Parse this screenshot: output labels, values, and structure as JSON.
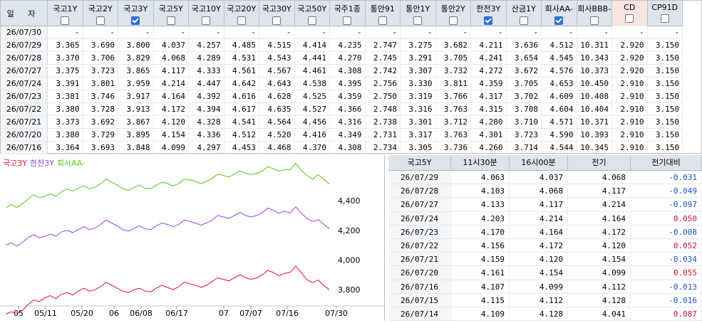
{
  "grid": {
    "date_header": "일 자",
    "columns": [
      {
        "label": "국고1Y",
        "checked": false
      },
      {
        "label": "국고2Y",
        "checked": false
      },
      {
        "label": "국고3Y",
        "checked": true
      },
      {
        "label": "국고5Y",
        "checked": false
      },
      {
        "label": "국고10Y",
        "checked": false
      },
      {
        "label": "국고20Y",
        "checked": false
      },
      {
        "label": "국고30Y",
        "checked": false
      },
      {
        "label": "국고50Y",
        "checked": false
      },
      {
        "label": "국주1종",
        "checked": false
      },
      {
        "label": "통안91",
        "checked": false
      },
      {
        "label": "통안1Y",
        "checked": false
      },
      {
        "label": "통안2Y",
        "checked": false
      },
      {
        "label": "한전3Y",
        "checked": true
      },
      {
        "label": "산금1Y",
        "checked": false
      },
      {
        "label": "회사AA-",
        "checked": true
      },
      {
        "label": "회사BBB-",
        "checked": false
      },
      {
        "label": "CD",
        "checked": false
      },
      {
        "label": "CP91D",
        "checked": false
      }
    ],
    "rows": [
      {
        "date": "26/07/30",
        "values": [
          "-",
          "-",
          "-",
          "-",
          "-",
          "-",
          "-",
          "-",
          "-",
          "-",
          "-",
          "-",
          "-",
          "-",
          "-",
          "-",
          "-",
          "-"
        ]
      },
      {
        "date": "26/07/29",
        "values": [
          "3.365",
          "3.690",
          "3.800",
          "4.037",
          "4.257",
          "4.485",
          "4.515",
          "4.414",
          "4.235",
          "2.747",
          "3.275",
          "3.682",
          "4.211",
          "3.636",
          "4.512",
          "10.311",
          "2.920",
          "3.150"
        ]
      },
      {
        "date": "26/07/28",
        "values": [
          "3.370",
          "3.706",
          "3.829",
          "4.068",
          "4.289",
          "4.531",
          "4.543",
          "4.441",
          "4.270",
          "2.745",
          "3.291",
          "3.705",
          "4.241",
          "3.654",
          "4.545",
          "10.343",
          "2.920",
          "3.150"
        ]
      },
      {
        "date": "26/07/27",
        "values": [
          "3.375",
          "3.723",
          "3.865",
          "4.117",
          "4.333",
          "4.561",
          "4.567",
          "4.461",
          "4.308",
          "2.742",
          "3.307",
          "3.732",
          "4.272",
          "3.672",
          "4.576",
          "10.373",
          "2.920",
          "3.150"
        ]
      },
      {
        "date": "26/07/24",
        "values": [
          "3.391",
          "3.801",
          "3.959",
          "4.214",
          "4.447",
          "4.642",
          "4.643",
          "4.538",
          "4.395",
          "2.756",
          "3.330",
          "3.811",
          "4.359",
          "3.705",
          "4.653",
          "10.450",
          "2.910",
          "3.150"
        ]
      },
      {
        "date": "26/07/23",
        "values": [
          "3.381",
          "3.746",
          "3.917",
          "4.164",
          "4.392",
          "4.616",
          "4.628",
          "4.525",
          "4.359",
          "2.750",
          "3.319",
          "3.766",
          "4.317",
          "3.702",
          "4.609",
          "10.408",
          "2.910",
          "3.150"
        ]
      },
      {
        "date": "26/07/22",
        "values": [
          "3.380",
          "3.728",
          "3.913",
          "4.172",
          "4.394",
          "4.617",
          "4.635",
          "4.527",
          "4.366",
          "2.748",
          "3.316",
          "3.763",
          "4.315",
          "3.708",
          "4.604",
          "10.404",
          "2.910",
          "3.150"
        ]
      },
      {
        "date": "26/07/21",
        "values": [
          "3.373",
          "3.692",
          "3.867",
          "4.120",
          "4.328",
          "4.541",
          "4.564",
          "4.456",
          "4.316",
          "2.738",
          "3.301",
          "3.712",
          "4.280",
          "3.710",
          "4.571",
          "10.371",
          "2.910",
          "3.150"
        ]
      },
      {
        "date": "26/07/20",
        "values": [
          "3.380",
          "3.729",
          "3.895",
          "4.154",
          "4.336",
          "4.512",
          "4.520",
          "4.416",
          "4.349",
          "2.731",
          "3.317",
          "3.763",
          "4.301",
          "3.723",
          "4.590",
          "10.393",
          "2.910",
          "3.150"
        ]
      },
      {
        "date": "26/07/16",
        "values": [
          "3.364",
          "3.693",
          "3.848",
          "4.099",
          "4.297",
          "4.453",
          "4.468",
          "4.370",
          "4.308",
          "2.734",
          "3.305",
          "3.736",
          "4.260",
          "3.714",
          "4.544",
          "10.345",
          "2.910",
          "3.150"
        ]
      }
    ]
  },
  "chart_data": {
    "type": "line",
    "legend": [
      {
        "name": "국고3Y",
        "color": "#e8102a"
      },
      {
        "name": "한전3Y",
        "color": "#9a3fe0"
      },
      {
        "name": "회사AA-",
        "color": "#58c41a"
      }
    ],
    "y_ticks": [
      "4,400",
      "4,200",
      "4,000",
      "3,800"
    ],
    "y_tick_values": [
      4400,
      4200,
      4000,
      3800
    ],
    "ylim": [
      3700,
      4650
    ],
    "x_ticks": [
      "05",
      "05/11",
      "05/20",
      "06",
      "06/08",
      "06/17",
      "07",
      "07/07",
      "07/16",
      "07/30"
    ],
    "series": [
      {
        "name": "국고3Y",
        "color": "#e8102a",
        "values": [
          3635,
          3650,
          3640,
          3660,
          3700,
          3730,
          3720,
          3745,
          3760,
          3740,
          3770,
          3780,
          3765,
          3790,
          3810,
          3790,
          3800,
          3820,
          3850,
          3830,
          3810,
          3790,
          3780,
          3800,
          3810,
          3790,
          3785,
          3810,
          3830,
          3815,
          3800,
          3820,
          3850,
          3840,
          3830,
          3815,
          3830,
          3855,
          3880,
          3870,
          3860,
          3880,
          3900,
          3880,
          3870,
          3880,
          3900,
          3930,
          3915,
          3895,
          3910,
          3917,
          3959,
          3913,
          3867,
          3848,
          3865,
          3829,
          3800
        ]
      },
      {
        "name": "한전3Y",
        "color": "#9a3fe0",
        "values": [
          4100,
          4115,
          4095,
          4120,
          4150,
          4170,
          4150,
          4160,
          4175,
          4160,
          4190,
          4200,
          4185,
          4205,
          4225,
          4205,
          4215,
          4240,
          4270,
          4250,
          4230,
          4205,
          4195,
          4215,
          4230,
          4210,
          4205,
          4230,
          4250,
          4240,
          4225,
          4240,
          4270,
          4260,
          4250,
          4235,
          4250,
          4270,
          4300,
          4290,
          4280,
          4300,
          4320,
          4300,
          4290,
          4300,
          4320,
          4350,
          4335,
          4315,
          4330,
          4317,
          4359,
          4315,
          4280,
          4260,
          4272,
          4241,
          4211
        ]
      },
      {
        "name": "회사AA-",
        "color": "#58c41a",
        "values": [
          4350,
          4375,
          4355,
          4380,
          4410,
          4440,
          4420,
          4430,
          4445,
          4430,
          4460,
          4480,
          4465,
          4485,
          4500,
          4480,
          4490,
          4515,
          4545,
          4525,
          4505,
          4480,
          4470,
          4490,
          4505,
          4485,
          4480,
          4505,
          4525,
          4515,
          4500,
          4515,
          4545,
          4540,
          4530,
          4515,
          4530,
          4550,
          4580,
          4570,
          4560,
          4580,
          4600,
          4585,
          4575,
          4585,
          4600,
          4630,
          4615,
          4600,
          4610,
          4609,
          4653,
          4604,
          4571,
          4544,
          4576,
          4545,
          4512
        ]
      }
    ]
  },
  "side_table": {
    "headers": [
      "국고5Y",
      "11시30분",
      "16시00분",
      "전기",
      "전기대비"
    ],
    "rows": [
      {
        "date": "26/07/29",
        "a": "4.063",
        "b": "4.037",
        "prev": "4.068",
        "diff": "-0.031"
      },
      {
        "date": "26/07/28",
        "a": "4.103",
        "b": "4.068",
        "prev": "4.117",
        "diff": "-0.049"
      },
      {
        "date": "26/07/27",
        "a": "4.133",
        "b": "4.117",
        "prev": "4.214",
        "diff": "-0.097"
      },
      {
        "date": "26/07/24",
        "a": "4.203",
        "b": "4.214",
        "prev": "4.164",
        "diff": "0.050"
      },
      {
        "date": "26/07/23",
        "a": "4.170",
        "b": "4.164",
        "prev": "4.172",
        "diff": "-0.008"
      },
      {
        "date": "26/07/22",
        "a": "4.156",
        "b": "4.172",
        "prev": "4.120",
        "diff": "0.052"
      },
      {
        "date": "26/07/21",
        "a": "4.159",
        "b": "4.120",
        "prev": "4.154",
        "diff": "-0.034"
      },
      {
        "date": "26/07/20",
        "a": "4.161",
        "b": "4.154",
        "prev": "4.099",
        "diff": "0.055"
      },
      {
        "date": "26/07/16",
        "a": "4.107",
        "b": "4.099",
        "prev": "4.112",
        "diff": "-0.013"
      },
      {
        "date": "26/07/15",
        "a": "4.115",
        "b": "4.112",
        "prev": "4.128",
        "diff": "-0.016"
      },
      {
        "date": "26/07/14",
        "a": "4.109",
        "b": "4.128",
        "prev": "4.041",
        "diff": "0.087"
      }
    ]
  }
}
